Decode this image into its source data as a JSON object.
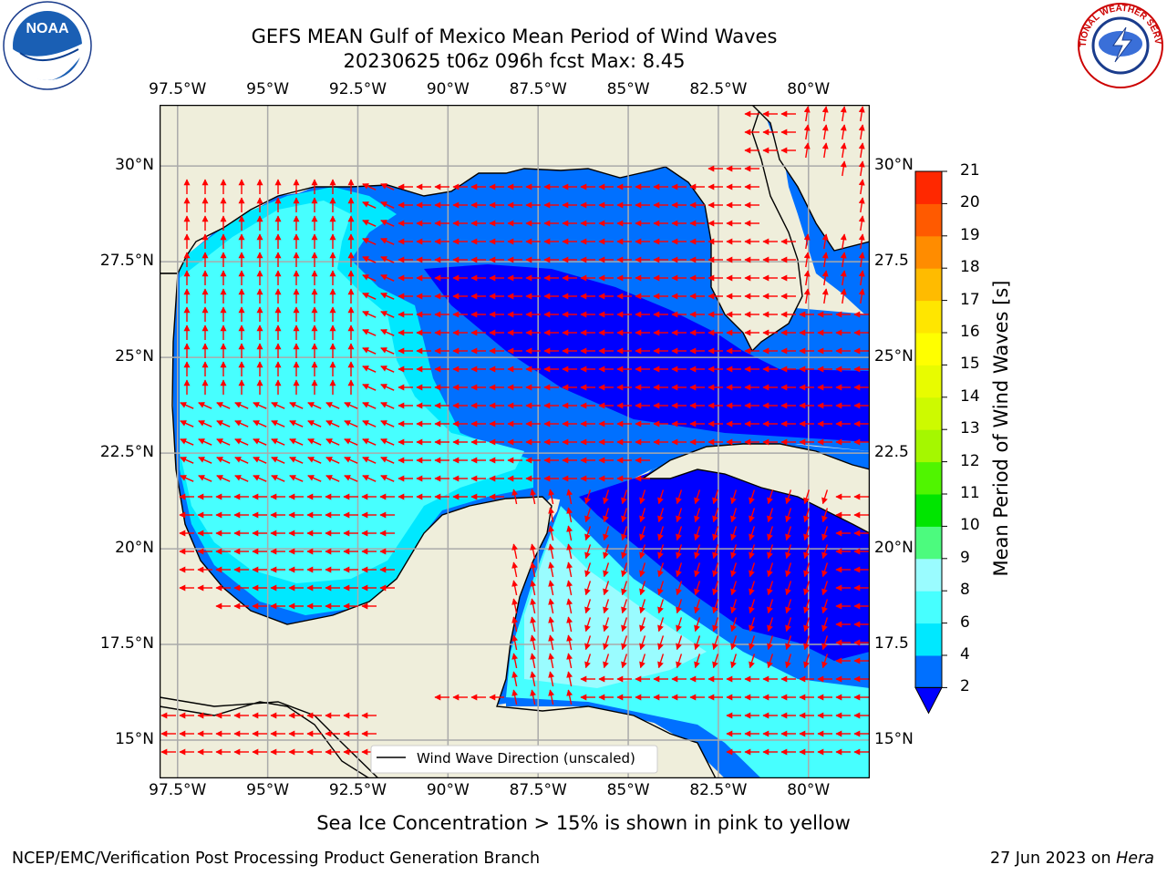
{
  "title": {
    "line1": "GEFS MEAN Gulf of Mexico Mean Period of Wind Waves",
    "line2": "20230625 t06z 096h fcst   Max: 8.45"
  },
  "map": {
    "extent": {
      "lon_min": -98.0,
      "lon_max": -78.3,
      "lat_min": 14.0,
      "lat_max": 31.6
    },
    "lon_ticks_top": [
      "97.5°W",
      "95°W",
      "92.5°W",
      "90°W",
      "87.5°W",
      "85°W",
      "82.5°W",
      "80°W"
    ],
    "lon_ticks_bottom": [
      "97.5°W",
      "95°W",
      "92.5°W",
      "90°W",
      "87.5°W",
      "85°W",
      "82.5°W",
      "80°W"
    ],
    "lon_tick_values": [
      -97.5,
      -95,
      -92.5,
      -90,
      -87.5,
      -85,
      -82.5,
      -80
    ],
    "lat_ticks_left": [
      "30°N",
      "27.5°N",
      "25°N",
      "22.5°N",
      "20°N",
      "17.5°N",
      "15°N"
    ],
    "lat_ticks_right": [
      "30°N",
      "27.5",
      "25°N",
      "22.5",
      "20°N",
      "17.5",
      "15°N"
    ],
    "lat_tick_values": [
      30,
      27.5,
      25,
      22.5,
      20,
      17.5,
      15
    ],
    "legend_label": "Wind Wave Direction (unscaled)",
    "arrow_color": "#ff0000",
    "land_color": "#efeedb",
    "grid_color": "#aaaaaa"
  },
  "colorbar": {
    "label": "Mean Period of Wind Waves [s]",
    "ticks": [
      "2",
      "4",
      "6",
      "8",
      "9",
      "10",
      "11",
      "12",
      "13",
      "14",
      "15",
      "16",
      "17",
      "18",
      "19",
      "20",
      "21"
    ],
    "colors": [
      "#0070ff",
      "#00e8ff",
      "#47ffff",
      "#9afcff",
      "#4cfb7e",
      "#00e500",
      "#50f500",
      "#a5f700",
      "#cdfa00",
      "#e8fc00",
      "#ffff00",
      "#ffe600",
      "#ffbb00",
      "#ff8c00",
      "#ff5a00",
      "#ff2800"
    ],
    "under_color": "#0000ff"
  },
  "note": "Sea Ice Concentration > 15% is shown in pink to yellow",
  "footer": {
    "left": "NCEP/EMC/Verification Post Processing Product Generation Branch",
    "date": "27 Jun 2023 on ",
    "machine": "Hera"
  },
  "logos": {
    "left": "NOAA",
    "right": "NATIONAL WEATHER SERVICE"
  }
}
